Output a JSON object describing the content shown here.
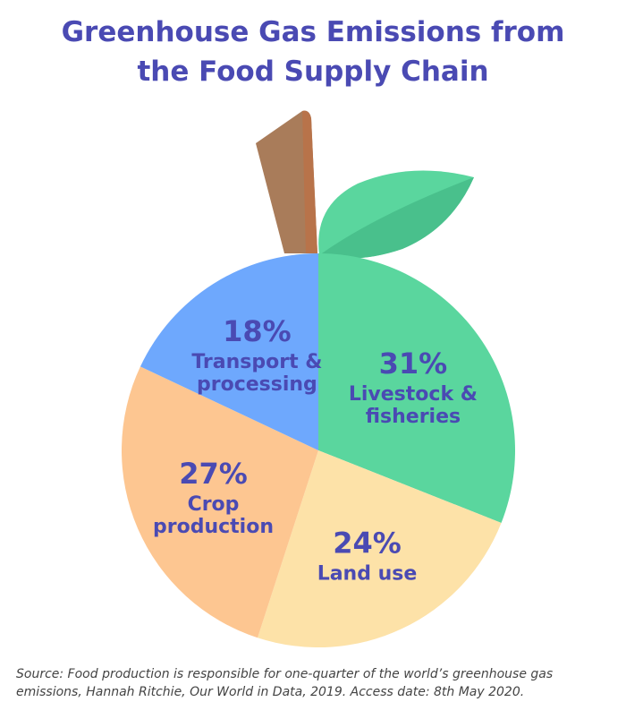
{
  "title_lines": [
    "Greenhouse Gas Emissions from",
    "the Food Supply Chain"
  ],
  "source": "Source: Food production is responsible for one-quarter of the world’s greenhouse gas emissions, Hannah Ritchie, Our World in Data, 2019. Access date: 8th May 2020.",
  "chart_data": {
    "type": "pie",
    "title": "Greenhouse Gas Emissions from the Food Supply Chain",
    "slices": [
      {
        "label_lines": [
          "Livestock &",
          "fisheries"
        ],
        "value": 31,
        "value_label": "31%",
        "color": "#5ad69e"
      },
      {
        "label_lines": [
          "Land use"
        ],
        "value": 24,
        "value_label": "24%",
        "color": "#fde2a8"
      },
      {
        "label_lines": [
          "Crop",
          "production"
        ],
        "value": 27,
        "value_label": "27%",
        "color": "#fdc691"
      },
      {
        "label_lines": [
          "Transport &",
          "processing"
        ],
        "value": 18,
        "value_label": "18%",
        "color": "#6ea8fd"
      }
    ],
    "start": "12 o'clock",
    "direction": "clockwise",
    "legend": "none",
    "decoration": "apple with stem and leaf",
    "colors": {
      "stem": "#a97c5a",
      "stem_shade": "#b8734a",
      "leaf": "#5ad69e",
      "leaf_shade": "#49c08c",
      "text": "#4a4ab3"
    }
  }
}
